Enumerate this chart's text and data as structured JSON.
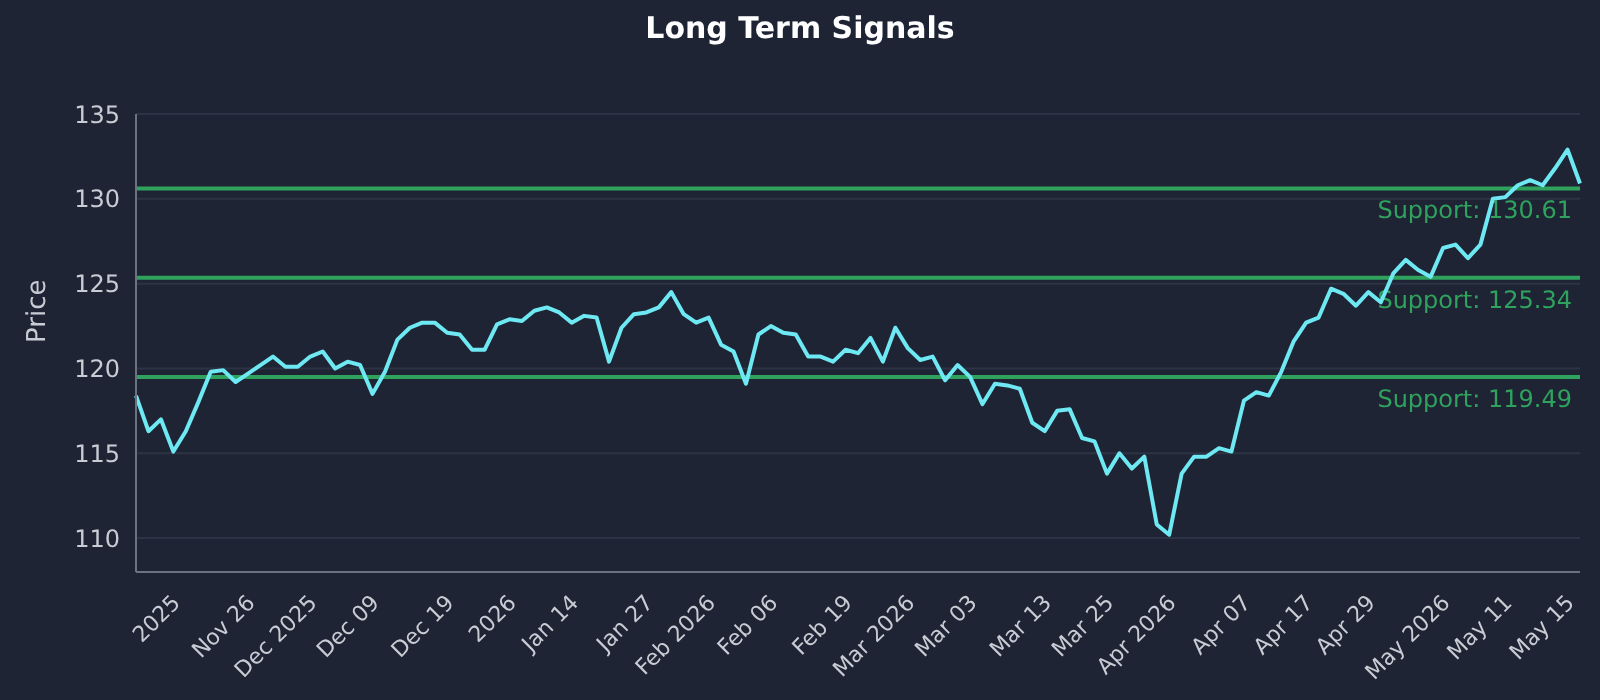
{
  "chart_data": {
    "type": "line",
    "title": "Long Term Signals",
    "ylabel": "Price",
    "categories": [
      null,
      null,
      null,
      "2025",
      null,
      null,
      null,
      null,
      null,
      "Nov 26",
      null,
      null,
      null,
      null,
      "Dec 2025",
      null,
      null,
      null,
      null,
      "Dec 09",
      null,
      null,
      null,
      null,
      null,
      "Dec 19",
      null,
      null,
      null,
      null,
      "2026",
      null,
      null,
      null,
      null,
      "Jan 14",
      null,
      null,
      null,
      null,
      null,
      "Jan 27",
      null,
      null,
      null,
      null,
      "Feb 2026",
      null,
      null,
      null,
      null,
      "Feb 06",
      null,
      null,
      null,
      null,
      null,
      "Feb 19",
      null,
      null,
      null,
      null,
      "Mar 2026",
      null,
      null,
      null,
      null,
      "Mar 03",
      null,
      null,
      null,
      null,
      null,
      "Mar 13",
      null,
      null,
      null,
      null,
      "Mar 25",
      null,
      null,
      null,
      null,
      "Apr 2026",
      null,
      null,
      null,
      null,
      null,
      "Apr 07",
      null,
      null,
      null,
      null,
      "Apr 17",
      null,
      null,
      null,
      null,
      "Apr 29",
      null,
      null,
      null,
      null,
      null,
      "May 2026",
      null,
      null,
      null,
      null,
      "May 11",
      null,
      null,
      null,
      null,
      "May 15",
      null
    ],
    "series": [
      {
        "color": "#6ee8f2",
        "values": [
          118.4,
          116.3,
          117.0,
          115.1,
          116.3,
          118.0,
          119.8,
          119.9,
          119.2,
          119.7,
          120.2,
          120.7,
          120.1,
          120.1,
          120.7,
          121.0,
          120.0,
          120.4,
          120.2,
          118.5,
          119.8,
          121.7,
          122.4,
          122.7,
          122.7,
          122.1,
          122.0,
          121.1,
          121.1,
          122.6,
          122.9,
          122.8,
          123.4,
          123.6,
          123.3,
          122.7,
          123.1,
          123.0,
          120.4,
          122.4,
          123.2,
          123.3,
          123.6,
          124.5,
          123.2,
          122.7,
          123.0,
          121.4,
          121.0,
          119.1,
          122.0,
          122.5,
          122.1,
          122.0,
          120.7,
          120.7,
          120.4,
          121.1,
          120.9,
          121.8,
          120.4,
          122.4,
          121.2,
          120.5,
          120.7,
          119.3,
          120.2,
          119.5,
          117.9,
          119.1,
          119.0,
          118.8,
          116.8,
          116.3,
          117.5,
          117.6,
          115.9,
          115.7,
          113.8,
          115.0,
          114.1,
          114.8,
          110.8,
          110.2,
          113.8,
          114.8,
          114.8,
          115.3,
          115.1,
          118.1,
          118.6,
          118.4,
          119.8,
          121.6,
          122.7,
          123.0,
          124.7,
          124.4,
          123.7,
          124.5,
          123.9,
          125.6,
          126.4,
          125.8,
          125.4,
          127.1,
          127.3,
          126.5,
          127.3,
          130.0,
          130.1,
          130.8,
          131.1,
          130.8,
          131.8,
          132.9,
          130.9
        ]
      }
    ],
    "ylim": [
      108,
      135
    ],
    "yticks": [
      110,
      115,
      120,
      125,
      130,
      135
    ],
    "grid": "y",
    "ref_lines": [
      {
        "axis": "y",
        "value": 130.61,
        "label": "Support: 130.61",
        "color": "#2fa35e"
      },
      {
        "axis": "y",
        "value": 125.34,
        "label": "Support: 125.34",
        "color": "#2fa35e"
      },
      {
        "axis": "y",
        "value": 119.49,
        "label": "Support: 119.49",
        "color": "#2fa35e"
      }
    ]
  }
}
